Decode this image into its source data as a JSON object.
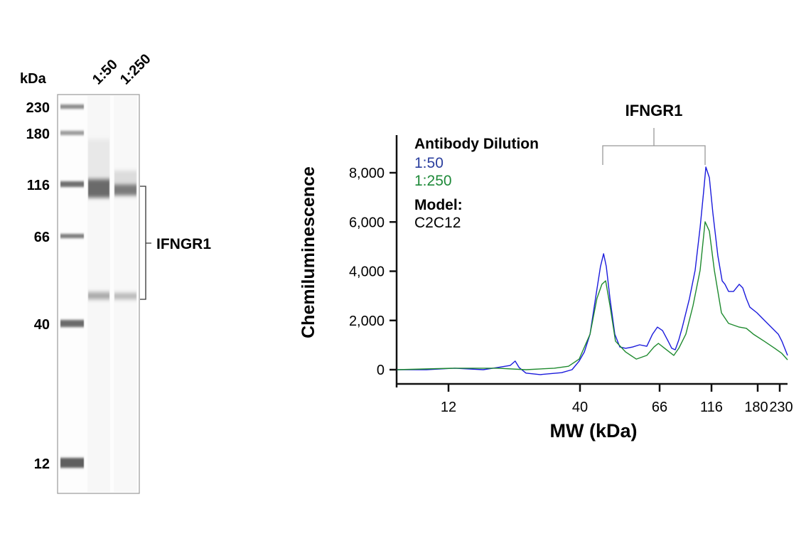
{
  "gel": {
    "unit_label": "kDa",
    "lane_labels": [
      "1:50",
      "1:250"
    ],
    "ladder": [
      "230",
      "180",
      "116",
      "66",
      "40",
      "12"
    ],
    "target_label": "IFNGR1",
    "target_bands_kda": [
      116,
      48
    ]
  },
  "chart_data": {
    "type": "line",
    "xlabel": "MW (kDa)",
    "ylabel": "Chemiluminescence",
    "x_ticks": [
      "12",
      "40",
      "66",
      "116",
      "180",
      "230"
    ],
    "y_ticks": [
      "0",
      "2,000",
      "4,000",
      "6,000",
      "8,000"
    ],
    "ylim": [
      -300,
      9500
    ],
    "grid": false,
    "annotation": "IFNGR1",
    "legend": {
      "title": "Antibody Dilution",
      "model_label": "Model:",
      "model_value": "C2C12",
      "placement": "top-left"
    },
    "series": [
      {
        "name": "1:50",
        "color": "#1a1adc",
        "label_color": "#2b3f9e",
        "x": [
          7.5,
          9.8,
          12.7,
          16.5,
          18.8,
          21.1,
          22.1,
          22.9,
          24.4,
          27.8,
          33.8,
          37.2,
          39.7,
          41.1,
          42.6,
          44.1,
          45.5,
          46.4,
          47.2,
          48.3,
          49.8,
          51.4,
          53.3,
          55.7,
          58.2,
          60.9,
          63.1,
          65.1,
          68.1,
          72.4,
          75.3,
          78.2,
          81.3,
          84.5,
          91.3,
          97.1,
          102.5,
          106.5,
          109.1,
          113.3,
          117.6,
          123.3,
          128.4,
          131.9,
          136.4,
          143.0,
          151.0,
          156.2,
          161.6,
          167.1,
          178.8,
          193.3,
          209.2,
          226.4,
          235.5,
          250.9
        ],
        "y": [
          0,
          0,
          60,
          0,
          90,
          170,
          350,
          90,
          -140,
          -200,
          -120,
          0,
          350,
          720,
          1440,
          2890,
          4190,
          4710,
          4190,
          2890,
          1440,
          920,
          870,
          920,
          1010,
          950,
          1440,
          1730,
          1590,
          1160,
          870,
          810,
          1210,
          1730,
          2890,
          4040,
          5780,
          7220,
          8230,
          7800,
          6350,
          4620,
          3610,
          3470,
          3180,
          3180,
          3470,
          3320,
          2890,
          2540,
          2310,
          2020,
          1730,
          1440,
          1160,
          580
        ]
      },
      {
        "name": "1:250",
        "color": "#1e8a2e",
        "label_color": "#1f8a3a",
        "x": [
          7.5,
          12.7,
          18.8,
          24.4,
          31.6,
          36.0,
          39.7,
          42.6,
          44.5,
          45.9,
          47.0,
          48.3,
          50.0,
          53.3,
          57.0,
          60.9,
          63.7,
          65.5,
          69.7,
          77.0,
          81.3,
          87.8,
          94.9,
          102.5,
          108.2,
          113.3,
          119.2,
          127.5,
          136.4,
          151.0,
          161.6,
          172.8,
          193.3,
          217.6,
          235.5,
          250.9
        ],
        "y": [
          0,
          60,
          60,
          0,
          60,
          140,
          430,
          1440,
          2890,
          3470,
          3610,
          2600,
          1160,
          720,
          430,
          580,
          920,
          1070,
          870,
          580,
          870,
          1440,
          2600,
          4040,
          6010,
          5630,
          4040,
          2310,
          1880,
          1730,
          1680,
          1440,
          1160,
          870,
          660,
          400
        ]
      }
    ]
  }
}
